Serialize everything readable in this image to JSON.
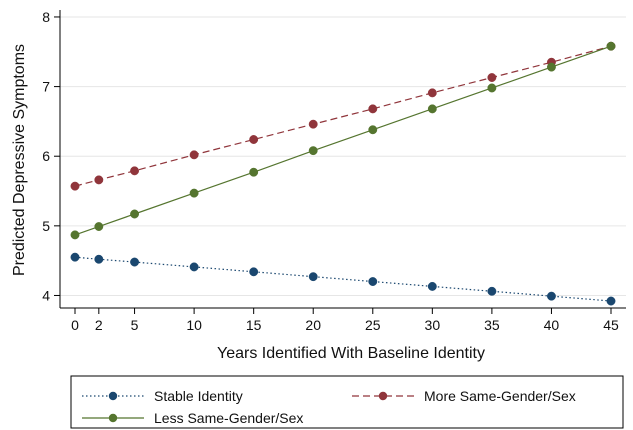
{
  "chart_data": {
    "type": "line",
    "xlabel": "Years Identified With Baseline Identity",
    "ylabel": "Predicted Depressive Symptoms",
    "x": [
      0,
      2,
      5,
      10,
      15,
      20,
      25,
      30,
      35,
      40,
      45
    ],
    "x_ticks": [
      "0",
      "2",
      "5",
      "10",
      "15",
      "20",
      "25",
      "30",
      "35",
      "40",
      "45"
    ],
    "y_ticks": [
      "4",
      "5",
      "6",
      "7",
      "8"
    ],
    "xlim": [
      0,
      45
    ],
    "ylim": [
      3.82,
      8.1
    ],
    "grid": "horizontal",
    "legend_position": "bottom",
    "series": [
      {
        "name": "Stable Identity",
        "color": "#1a476f",
        "line_style": "dotted",
        "values": [
          4.55,
          4.52,
          4.48,
          4.41,
          4.34,
          4.27,
          4.2,
          4.13,
          4.06,
          3.99,
          3.92
        ]
      },
      {
        "name": "More Same-Gender/Sex",
        "color": "#90353b",
        "line_style": "dashed",
        "values": [
          5.57,
          5.66,
          5.79,
          6.02,
          6.24,
          6.46,
          6.68,
          6.91,
          7.13,
          7.35,
          7.58
        ]
      },
      {
        "name": "Less Same-Gender/Sex",
        "color": "#55752f",
        "line_style": "solid",
        "values": [
          4.87,
          4.99,
          5.17,
          5.47,
          5.77,
          6.08,
          6.38,
          6.68,
          6.98,
          7.28,
          7.58
        ]
      }
    ]
  }
}
